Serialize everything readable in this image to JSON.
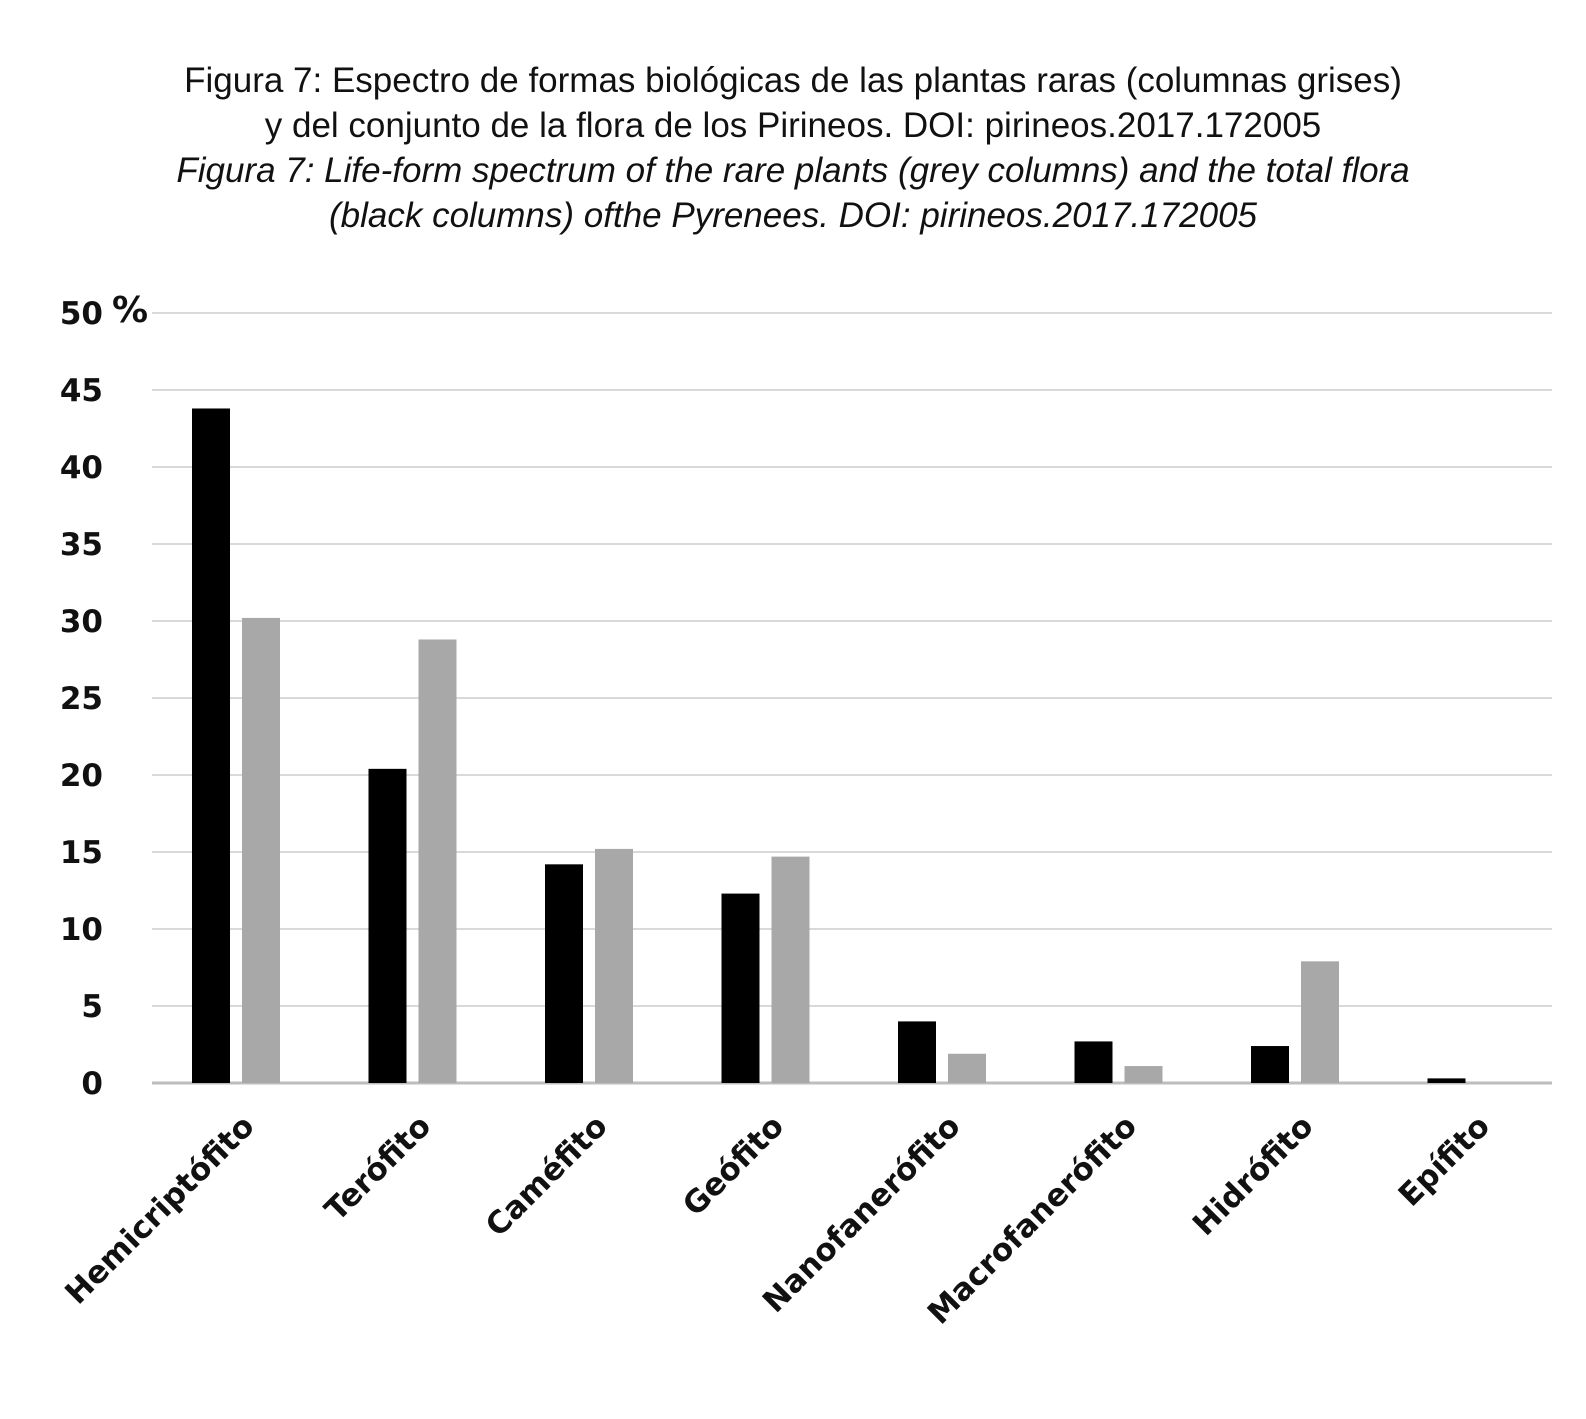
{
  "title_es_line1": "Figura 7: Espectro de formas biológicas de las plantas raras (columnas grises)",
  "title_es_line2": "y del conjunto de la flora de los Pirineos. DOI: pirineos.2017.172005",
  "title_en_line1": "Figura 7: Life-form spectrum of  the rare plants (grey columns) and the total flora",
  "title_en_line2": "(black columns) ofthe Pyrenees. DOI: pirineos.2017.172005",
  "chart_data": {
    "type": "bar",
    "ylabel": "%",
    "ylim": [
      0,
      50
    ],
    "yticks": [
      0,
      5,
      10,
      15,
      20,
      25,
      30,
      35,
      40,
      45,
      50
    ],
    "grid": true,
    "categories": [
      "Hemicriptófito",
      "Terófito",
      "Caméfito",
      "Geófito",
      "Nanofanerófito",
      "Macrofanerófito",
      "Hidrófito",
      "Epífito"
    ],
    "series": [
      {
        "color": "#000000",
        "values": [
          43.8,
          20.4,
          14.2,
          12.3,
          4.0,
          2.7,
          2.4,
          0.3
        ]
      },
      {
        "color": "#a8a8a8",
        "values": [
          30.2,
          28.8,
          15.2,
          14.7,
          1.9,
          1.1,
          7.9,
          0
        ]
      }
    ]
  }
}
